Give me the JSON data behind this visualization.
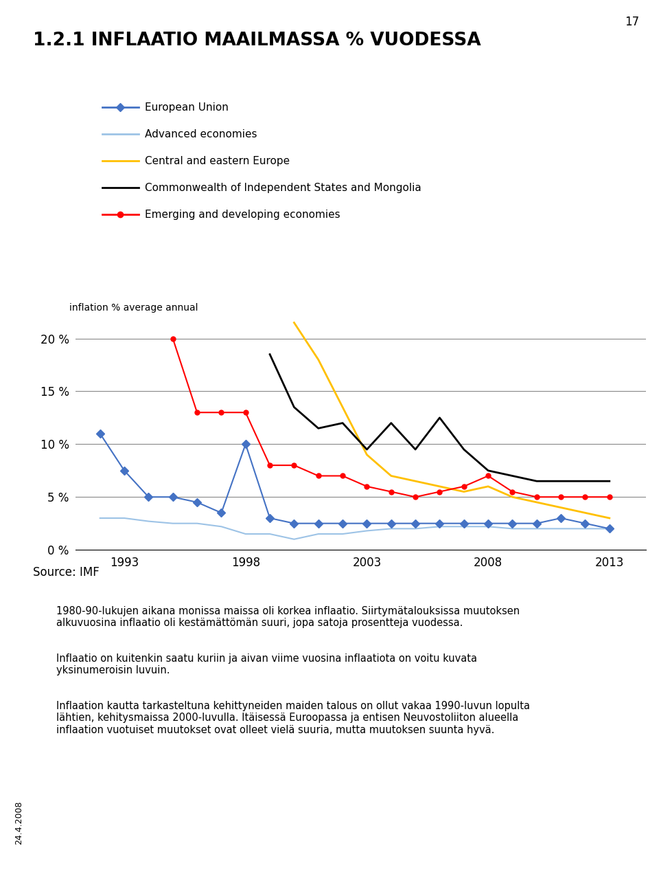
{
  "title": "1.2.1 INFLAATIO MAAILMASSA % VUODESSA",
  "page_number": "17",
  "ylabel": "inflation % average annual",
  "source": "Source: IMF",
  "ylim": [
    0,
    22
  ],
  "yticks": [
    0,
    5,
    10,
    15,
    20
  ],
  "ytick_labels": [
    "0 %",
    "5 %",
    "10 %",
    "15 %",
    "20 %"
  ],
  "xticks": [
    1993,
    1998,
    2003,
    2008,
    2013
  ],
  "xtick_labels": [
    "1993",
    "1998",
    "2003",
    "2008",
    "2013"
  ],
  "date_stamp": "24.4.2008",
  "legend_entries": [
    {
      "label": "European Union",
      "color": "#4472C4",
      "marker": "D"
    },
    {
      "label": "Advanced economies",
      "color": "#9DC3E6",
      "marker": null
    },
    {
      "label": "Central and eastern Europe",
      "color": "#FFC000",
      "marker": null
    },
    {
      "label": "Commonwealth of Independent States and Mongolia",
      "color": "#000000",
      "marker": null
    },
    {
      "label": "Emerging and developing economies",
      "color": "#FF0000",
      "marker": "o"
    }
  ],
  "eu_x": [
    1992,
    1993,
    1994,
    1995,
    1996,
    1997,
    1998,
    1999,
    2000,
    2001,
    2002,
    2003,
    2004,
    2005,
    2006,
    2007,
    2008,
    2009,
    2010,
    2011,
    2012,
    2013
  ],
  "eu_y": [
    11.0,
    7.5,
    5.0,
    5.0,
    4.5,
    3.5,
    10.0,
    3.0,
    2.5,
    2.5,
    2.5,
    2.5,
    2.5,
    2.5,
    2.5,
    2.5,
    2.5,
    2.5,
    2.5,
    3.0,
    2.5,
    2.0
  ],
  "adv_x": [
    1992,
    1993,
    1994,
    1995,
    1996,
    1997,
    1998,
    1999,
    2000,
    2001,
    2002,
    2003,
    2004,
    2005,
    2006,
    2007,
    2008,
    2009,
    2010,
    2011,
    2012,
    2013
  ],
  "adv_y": [
    3.0,
    3.0,
    2.7,
    2.5,
    2.5,
    2.2,
    1.5,
    1.5,
    1.0,
    1.5,
    1.5,
    1.8,
    2.0,
    2.0,
    2.2,
    2.2,
    2.2,
    2.0,
    2.0,
    2.0,
    2.0,
    2.0
  ],
  "cee_x": [
    2000,
    2001,
    2002,
    2003,
    2004,
    2005,
    2006,
    2007,
    2008,
    2009,
    2010,
    2011,
    2012,
    2013
  ],
  "cee_y": [
    21.5,
    18.0,
    13.5,
    9.0,
    7.0,
    6.5,
    6.0,
    5.5,
    6.0,
    5.0,
    4.5,
    4.0,
    3.5,
    3.0
  ],
  "com_x": [
    1999,
    2000,
    2001,
    2002,
    2003,
    2004,
    2005,
    2006,
    2007,
    2008,
    2009,
    2010,
    2011,
    2012,
    2013
  ],
  "com_y": [
    18.5,
    13.5,
    11.5,
    12.0,
    9.5,
    12.0,
    9.5,
    12.5,
    9.5,
    7.5,
    7.0,
    6.5,
    6.5,
    6.5,
    6.5
  ],
  "em_x": [
    1995,
    1996,
    1997,
    1998,
    1999,
    2000,
    2001,
    2002,
    2003,
    2004,
    2005,
    2006,
    2007,
    2008,
    2009,
    2010,
    2011,
    2012,
    2013
  ],
  "em_y": [
    20.0,
    13.0,
    13.0,
    13.0,
    8.0,
    8.0,
    7.0,
    7.0,
    6.0,
    5.5,
    5.0,
    5.5,
    6.0,
    7.0,
    5.5,
    5.0,
    5.0,
    5.0,
    5.0
  ],
  "body_text": [
    "1980-90-lukujen aikana monissa maissa oli korkea inflaatio. Siirtymätalouksissa muutoksen alkuvuosina inflaatio oli kestämättömän suuri, jopa satoja prosentteja vuodessa.",
    "Inflaatio on kuitenkin saatu kuriin ja aivan viime vuosina inflaatiota on voitu kuvata yksinumeroisin luvuin.",
    "Inflaation kautta tarkasteltuna kehittyneiden maiden talous on ollut vakaa 1990-luvun lopulta lähtien, kehitysmaissa 2000-luvulla. Itäisessä Euroopassa ja entisen Neuvostoliiton alueella inflaation vuotuiset muutokset ovat olleet vielä suuria, mutta muutoksen suunta hyvä."
  ]
}
